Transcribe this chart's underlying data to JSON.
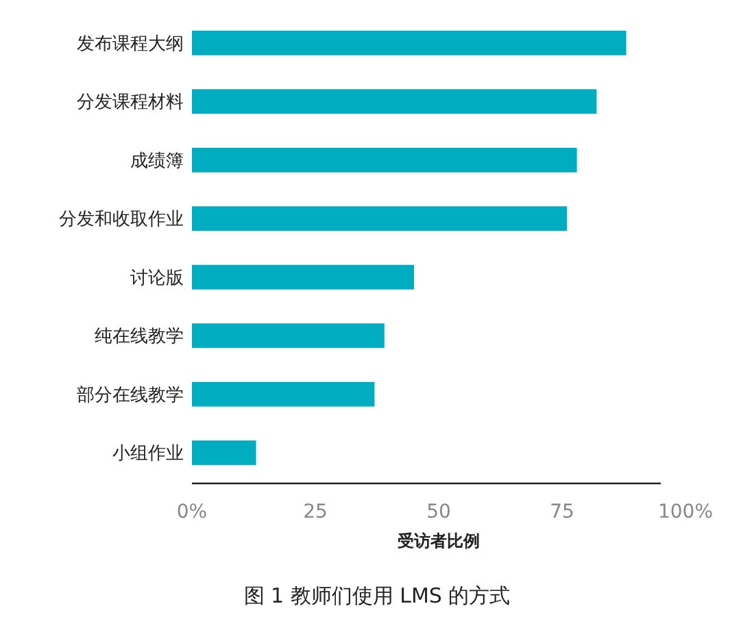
{
  "chart_data": {
    "type": "bar",
    "orientation": "horizontal",
    "xlabel": "受访者比例",
    "categories": [
      "发布课程大纲",
      "分发课程材料",
      "成绩簿",
      "分发和收取作业",
      "讨论版",
      "纯在线教学",
      "部分在线教学",
      "小组作业"
    ],
    "values": [
      88,
      82,
      78,
      76,
      45,
      39,
      37,
      13
    ],
    "color": "#00adc0",
    "xlim": [
      0,
      100
    ],
    "xticks": [
      {
        "value": 0,
        "label": "0%"
      },
      25,
      50,
      75,
      {
        "value": 100,
        "label": "100%"
      }
    ],
    "annotations": [
      "图 1   教师们使用 LMS 的方式"
    ]
  }
}
